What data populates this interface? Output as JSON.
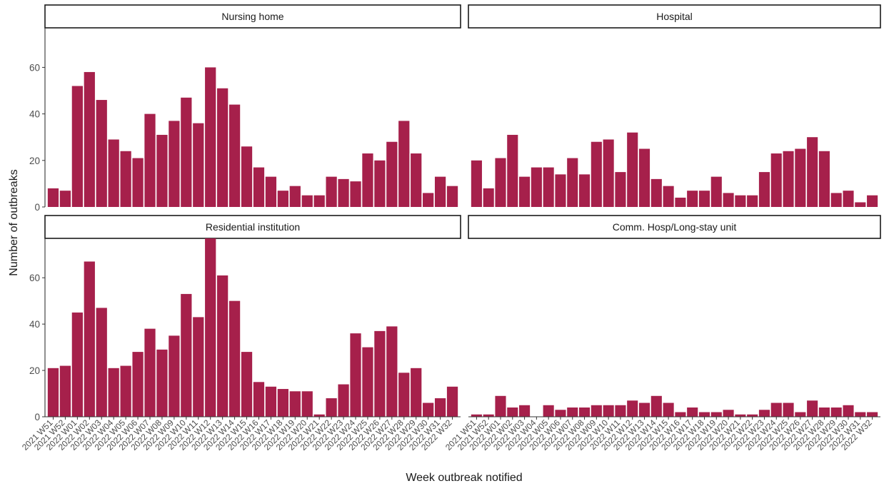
{
  "chart_data": {
    "type": "bar",
    "layout": "facet-grid 2x2",
    "xlabel": "Week outbreak notified",
    "ylabel": "Number of outbreaks",
    "ylim": [
      0,
      77
    ],
    "yticks": [
      0,
      20,
      40,
      60
    ],
    "grid": false,
    "bar_color": "#A6204B",
    "categories": [
      "2021 W51",
      "2021 W52",
      "2022 W01",
      "2022 W02",
      "2022 W03",
      "2022 W04",
      "2022 W05",
      "2022 W06",
      "2022 W07",
      "2022 W08",
      "2022 W09",
      "2022 W10",
      "2022 W11",
      "2022 W12",
      "2022 W13",
      "2022 W14",
      "2022 W15",
      "2022 W16",
      "2022 W17",
      "2022 W18",
      "2022 W19",
      "2022 W20",
      "2022 W21",
      "2022 W22",
      "2022 W23",
      "2022 W24",
      "2022 W25",
      "2022 W26",
      "2022 W27",
      "2022 W28",
      "2022 W29",
      "2022 W30",
      "2022 W31",
      "2022 W32"
    ],
    "panels": [
      {
        "title": "Nursing home",
        "values": [
          8,
          7,
          52,
          58,
          46,
          29,
          24,
          21,
          40,
          31,
          37,
          47,
          36,
          60,
          51,
          44,
          26,
          17,
          13,
          7,
          9,
          5,
          5,
          13,
          12,
          11,
          23,
          20,
          28,
          37,
          23,
          6,
          13,
          9
        ]
      },
      {
        "title": "Hospital",
        "values": [
          20,
          8,
          21,
          31,
          13,
          17,
          17,
          14,
          21,
          14,
          28,
          29,
          15,
          32,
          25,
          12,
          9,
          4,
          7,
          7,
          13,
          6,
          5,
          5,
          15,
          23,
          24,
          25,
          30,
          24,
          6,
          7,
          2,
          5
        ]
      },
      {
        "title": "Residential institution",
        "values": [
          21,
          22,
          45,
          67,
          47,
          21,
          22,
          28,
          38,
          29,
          35,
          53,
          43,
          77,
          61,
          50,
          28,
          15,
          13,
          12,
          11,
          11,
          1,
          8,
          14,
          36,
          30,
          37,
          39,
          19,
          21,
          6,
          8,
          13
        ]
      },
      {
        "title": "Comm. Hosp/Long-stay unit",
        "values": [
          1,
          1,
          9,
          4,
          5,
          0,
          5,
          3,
          4,
          4,
          5,
          5,
          5,
          7,
          6,
          9,
          6,
          2,
          4,
          2,
          2,
          3,
          1,
          1,
          3,
          6,
          6,
          2,
          7,
          4,
          4,
          5,
          2,
          2
        ]
      }
    ]
  }
}
